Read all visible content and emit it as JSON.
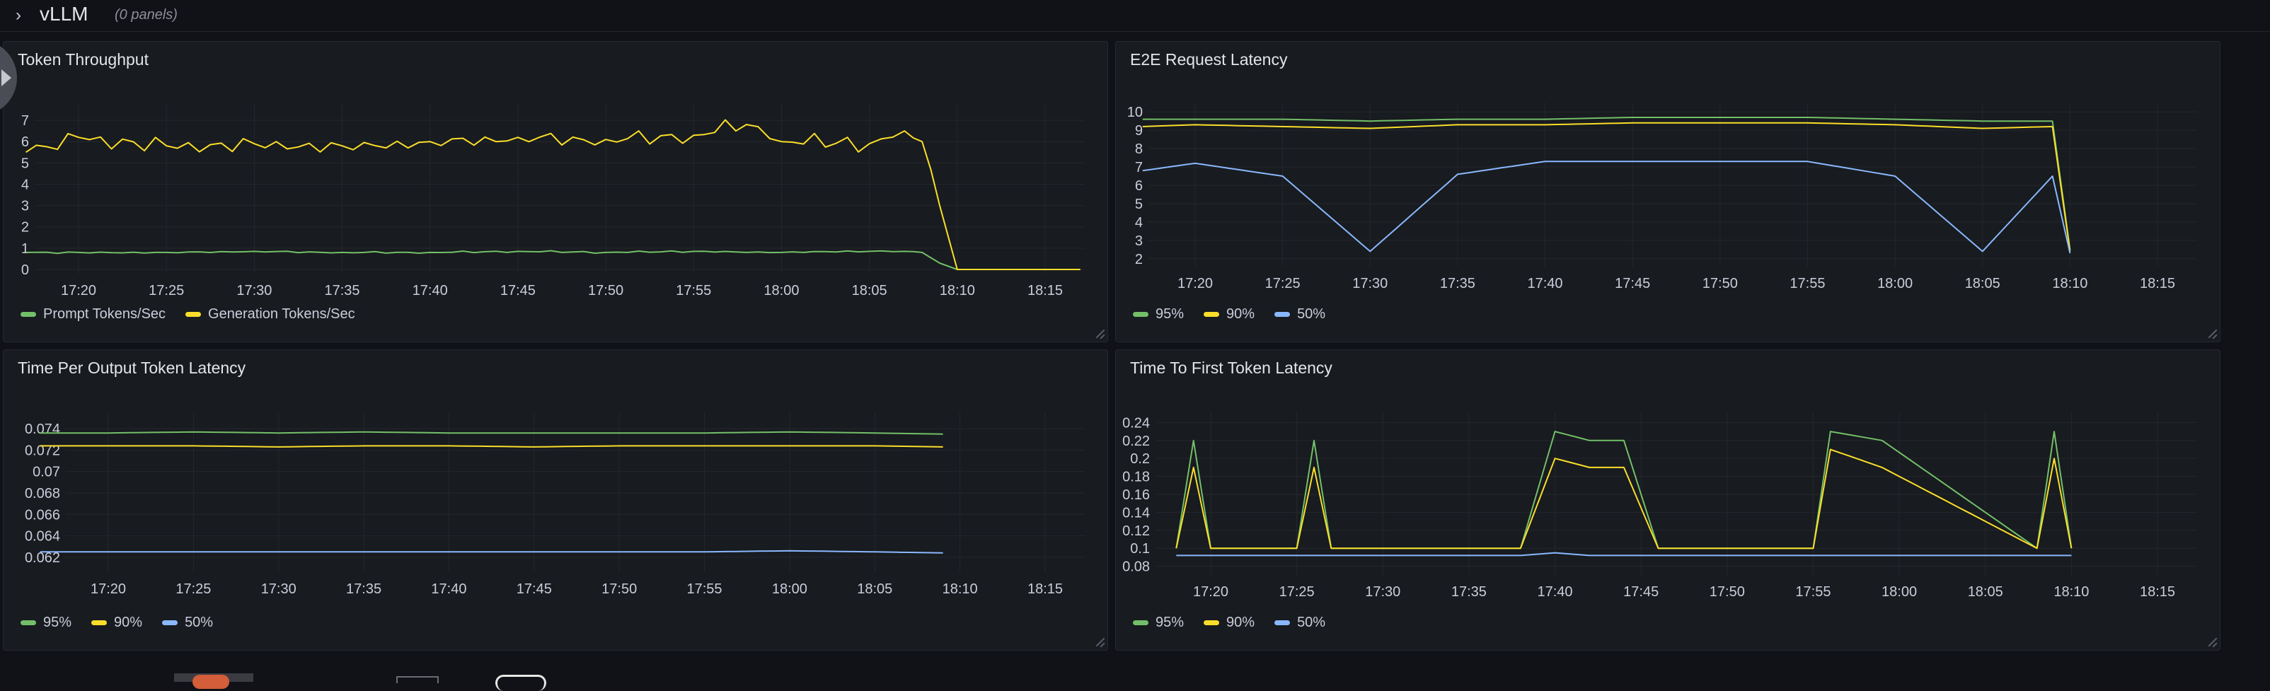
{
  "row": {
    "chevron": "›",
    "title": "vLLM",
    "panel_count": "(0 panels)"
  },
  "time_ticks": [
    "17:20",
    "17:25",
    "17:30",
    "17:35",
    "17:40",
    "17:45",
    "17:50",
    "17:55",
    "18:00",
    "18:05",
    "18:10",
    "18:15"
  ],
  "colors": {
    "green": "#73bf69",
    "yellow": "#fade2a",
    "blue": "#8ab8ff",
    "grid": "#24272e",
    "text": "#ccccdc"
  },
  "panels": {
    "token_throughput": {
      "title": "Token Throughput",
      "legend": [
        {
          "label": "Prompt Tokens/Sec",
          "color": "#73bf69"
        },
        {
          "label": "Generation Tokens/Sec",
          "color": "#fade2a"
        }
      ]
    },
    "e2e_latency": {
      "title": "E2E Request Latency",
      "legend": [
        {
          "label": "95%",
          "color": "#73bf69"
        },
        {
          "label": "90%",
          "color": "#fade2a"
        },
        {
          "label": "50%",
          "color": "#8ab8ff"
        }
      ]
    },
    "tpot_latency": {
      "title": "Time Per Output Token Latency",
      "legend": [
        {
          "label": "95%",
          "color": "#73bf69"
        },
        {
          "label": "90%",
          "color": "#fade2a"
        },
        {
          "label": "50%",
          "color": "#8ab8ff"
        }
      ]
    },
    "ttft_latency": {
      "title": "Time To First Token Latency",
      "legend": [
        {
          "label": "95%",
          "color": "#73bf69"
        },
        {
          "label": "90%",
          "color": "#fade2a"
        },
        {
          "label": "50%",
          "color": "#8ab8ff"
        }
      ]
    }
  },
  "chart_data": [
    {
      "type": "line",
      "title": "Token Throughput",
      "x": [
        "17:17",
        "17:20",
        "17:25",
        "17:30",
        "17:35",
        "17:40",
        "17:45",
        "17:50",
        "17:55",
        "17:58",
        "18:00",
        "18:05",
        "18:07",
        "18:08",
        "18:09",
        "18:10",
        "18:15",
        "18:17"
      ],
      "y_ticks": [
        0,
        1,
        2,
        3,
        4,
        5,
        6,
        7
      ],
      "ylim": [
        0,
        7.5
      ],
      "series": [
        {
          "name": "Prompt Tokens/Sec",
          "color": "#73bf69",
          "values": [
            0.8,
            0.8,
            0.8,
            0.85,
            0.8,
            0.8,
            0.85,
            0.8,
            0.85,
            0.8,
            0.8,
            0.85,
            0.85,
            0.8,
            0.3,
            0,
            0,
            0
          ]
        },
        {
          "name": "Generation Tokens/Sec",
          "color": "#fade2a",
          "values": [
            5.5,
            6.2,
            5.8,
            5.9,
            5.8,
            6.0,
            6.2,
            6.1,
            6.3,
            6.8,
            6.0,
            5.9,
            6.5,
            6.0,
            3.0,
            0,
            0,
            0
          ]
        }
      ]
    },
    {
      "type": "line",
      "title": "E2E Request Latency",
      "x": [
        "17:17",
        "17:20",
        "17:25",
        "17:30",
        "17:35",
        "17:40",
        "17:45",
        "17:50",
        "17:55",
        "18:00",
        "18:05",
        "18:09",
        "18:10"
      ],
      "y_ticks": [
        2,
        3,
        4,
        5,
        6,
        7,
        8,
        9,
        10
      ],
      "ylim": [
        1.8,
        10.2
      ],
      "series": [
        {
          "name": "95%",
          "color": "#73bf69",
          "values": [
            9.6,
            9.6,
            9.6,
            9.5,
            9.6,
            9.6,
            9.7,
            9.7,
            9.7,
            9.6,
            9.5,
            9.5,
            2.5
          ]
        },
        {
          "name": "90%",
          "color": "#fade2a",
          "values": [
            9.2,
            9.3,
            9.2,
            9.1,
            9.3,
            9.3,
            9.4,
            9.4,
            9.4,
            9.3,
            9.1,
            9.2,
            2.4
          ]
        },
        {
          "name": "50%",
          "color": "#8ab8ff",
          "values": [
            6.8,
            7.2,
            6.5,
            2.4,
            6.6,
            7.3,
            7.3,
            7.3,
            7.3,
            6.5,
            2.4,
            6.5,
            2.3
          ]
        }
      ]
    },
    {
      "type": "line",
      "title": "Time Per Output Token Latency",
      "x": [
        "17:16",
        "17:20",
        "17:25",
        "17:30",
        "17:35",
        "17:40",
        "17:45",
        "17:50",
        "17:55",
        "18:00",
        "18:05",
        "18:09"
      ],
      "y_ticks": [
        0.062,
        0.064,
        0.066,
        0.068,
        0.07,
        0.072,
        0.074
      ],
      "ylim": [
        0.061,
        0.075
      ],
      "series": [
        {
          "name": "95%",
          "color": "#73bf69",
          "values": [
            0.0736,
            0.0736,
            0.0737,
            0.0736,
            0.0737,
            0.0736,
            0.0736,
            0.0736,
            0.0736,
            0.0737,
            0.0736,
            0.0735
          ]
        },
        {
          "name": "90%",
          "color": "#fade2a",
          "values": [
            0.0724,
            0.0724,
            0.0724,
            0.0723,
            0.0724,
            0.0724,
            0.0723,
            0.0724,
            0.0724,
            0.0724,
            0.0724,
            0.0723
          ]
        },
        {
          "name": "50%",
          "color": "#8ab8ff",
          "values": [
            0.0625,
            0.0625,
            0.0625,
            0.0625,
            0.0625,
            0.0625,
            0.0625,
            0.0625,
            0.0625,
            0.0626,
            0.0625,
            0.0624
          ]
        }
      ]
    },
    {
      "type": "line",
      "title": "Time To First Token Latency",
      "x": [
        "17:18",
        "17:19",
        "17:20",
        "17:25",
        "17:26",
        "17:27",
        "17:38",
        "17:40",
        "17:42",
        "17:44",
        "17:46",
        "17:55",
        "17:56",
        "17:59",
        "18:08",
        "18:09",
        "18:10"
      ],
      "y_ticks": [
        0.08,
        0.1,
        0.12,
        0.14,
        0.16,
        0.18,
        0.2,
        0.22,
        0.24
      ],
      "ylim": [
        0.075,
        0.245
      ],
      "series": [
        {
          "name": "95%",
          "color": "#73bf69",
          "values": [
            0.1,
            0.22,
            0.1,
            0.1,
            0.22,
            0.1,
            0.1,
            0.23,
            0.22,
            0.22,
            0.1,
            0.1,
            0.23,
            0.22,
            0.1,
            0.23,
            0.1
          ]
        },
        {
          "name": "90%",
          "color": "#fade2a",
          "values": [
            0.1,
            0.19,
            0.1,
            0.1,
            0.19,
            0.1,
            0.1,
            0.2,
            0.19,
            0.19,
            0.1,
            0.1,
            0.21,
            0.19,
            0.1,
            0.2,
            0.1
          ]
        },
        {
          "name": "50%",
          "color": "#8ab8ff",
          "values": [
            0.092,
            0.092,
            0.092,
            0.092,
            0.092,
            0.092,
            0.092,
            0.095,
            0.092,
            0.092,
            0.092,
            0.092,
            0.092,
            0.092,
            0.092,
            0.092,
            0.092
          ]
        }
      ]
    }
  ]
}
